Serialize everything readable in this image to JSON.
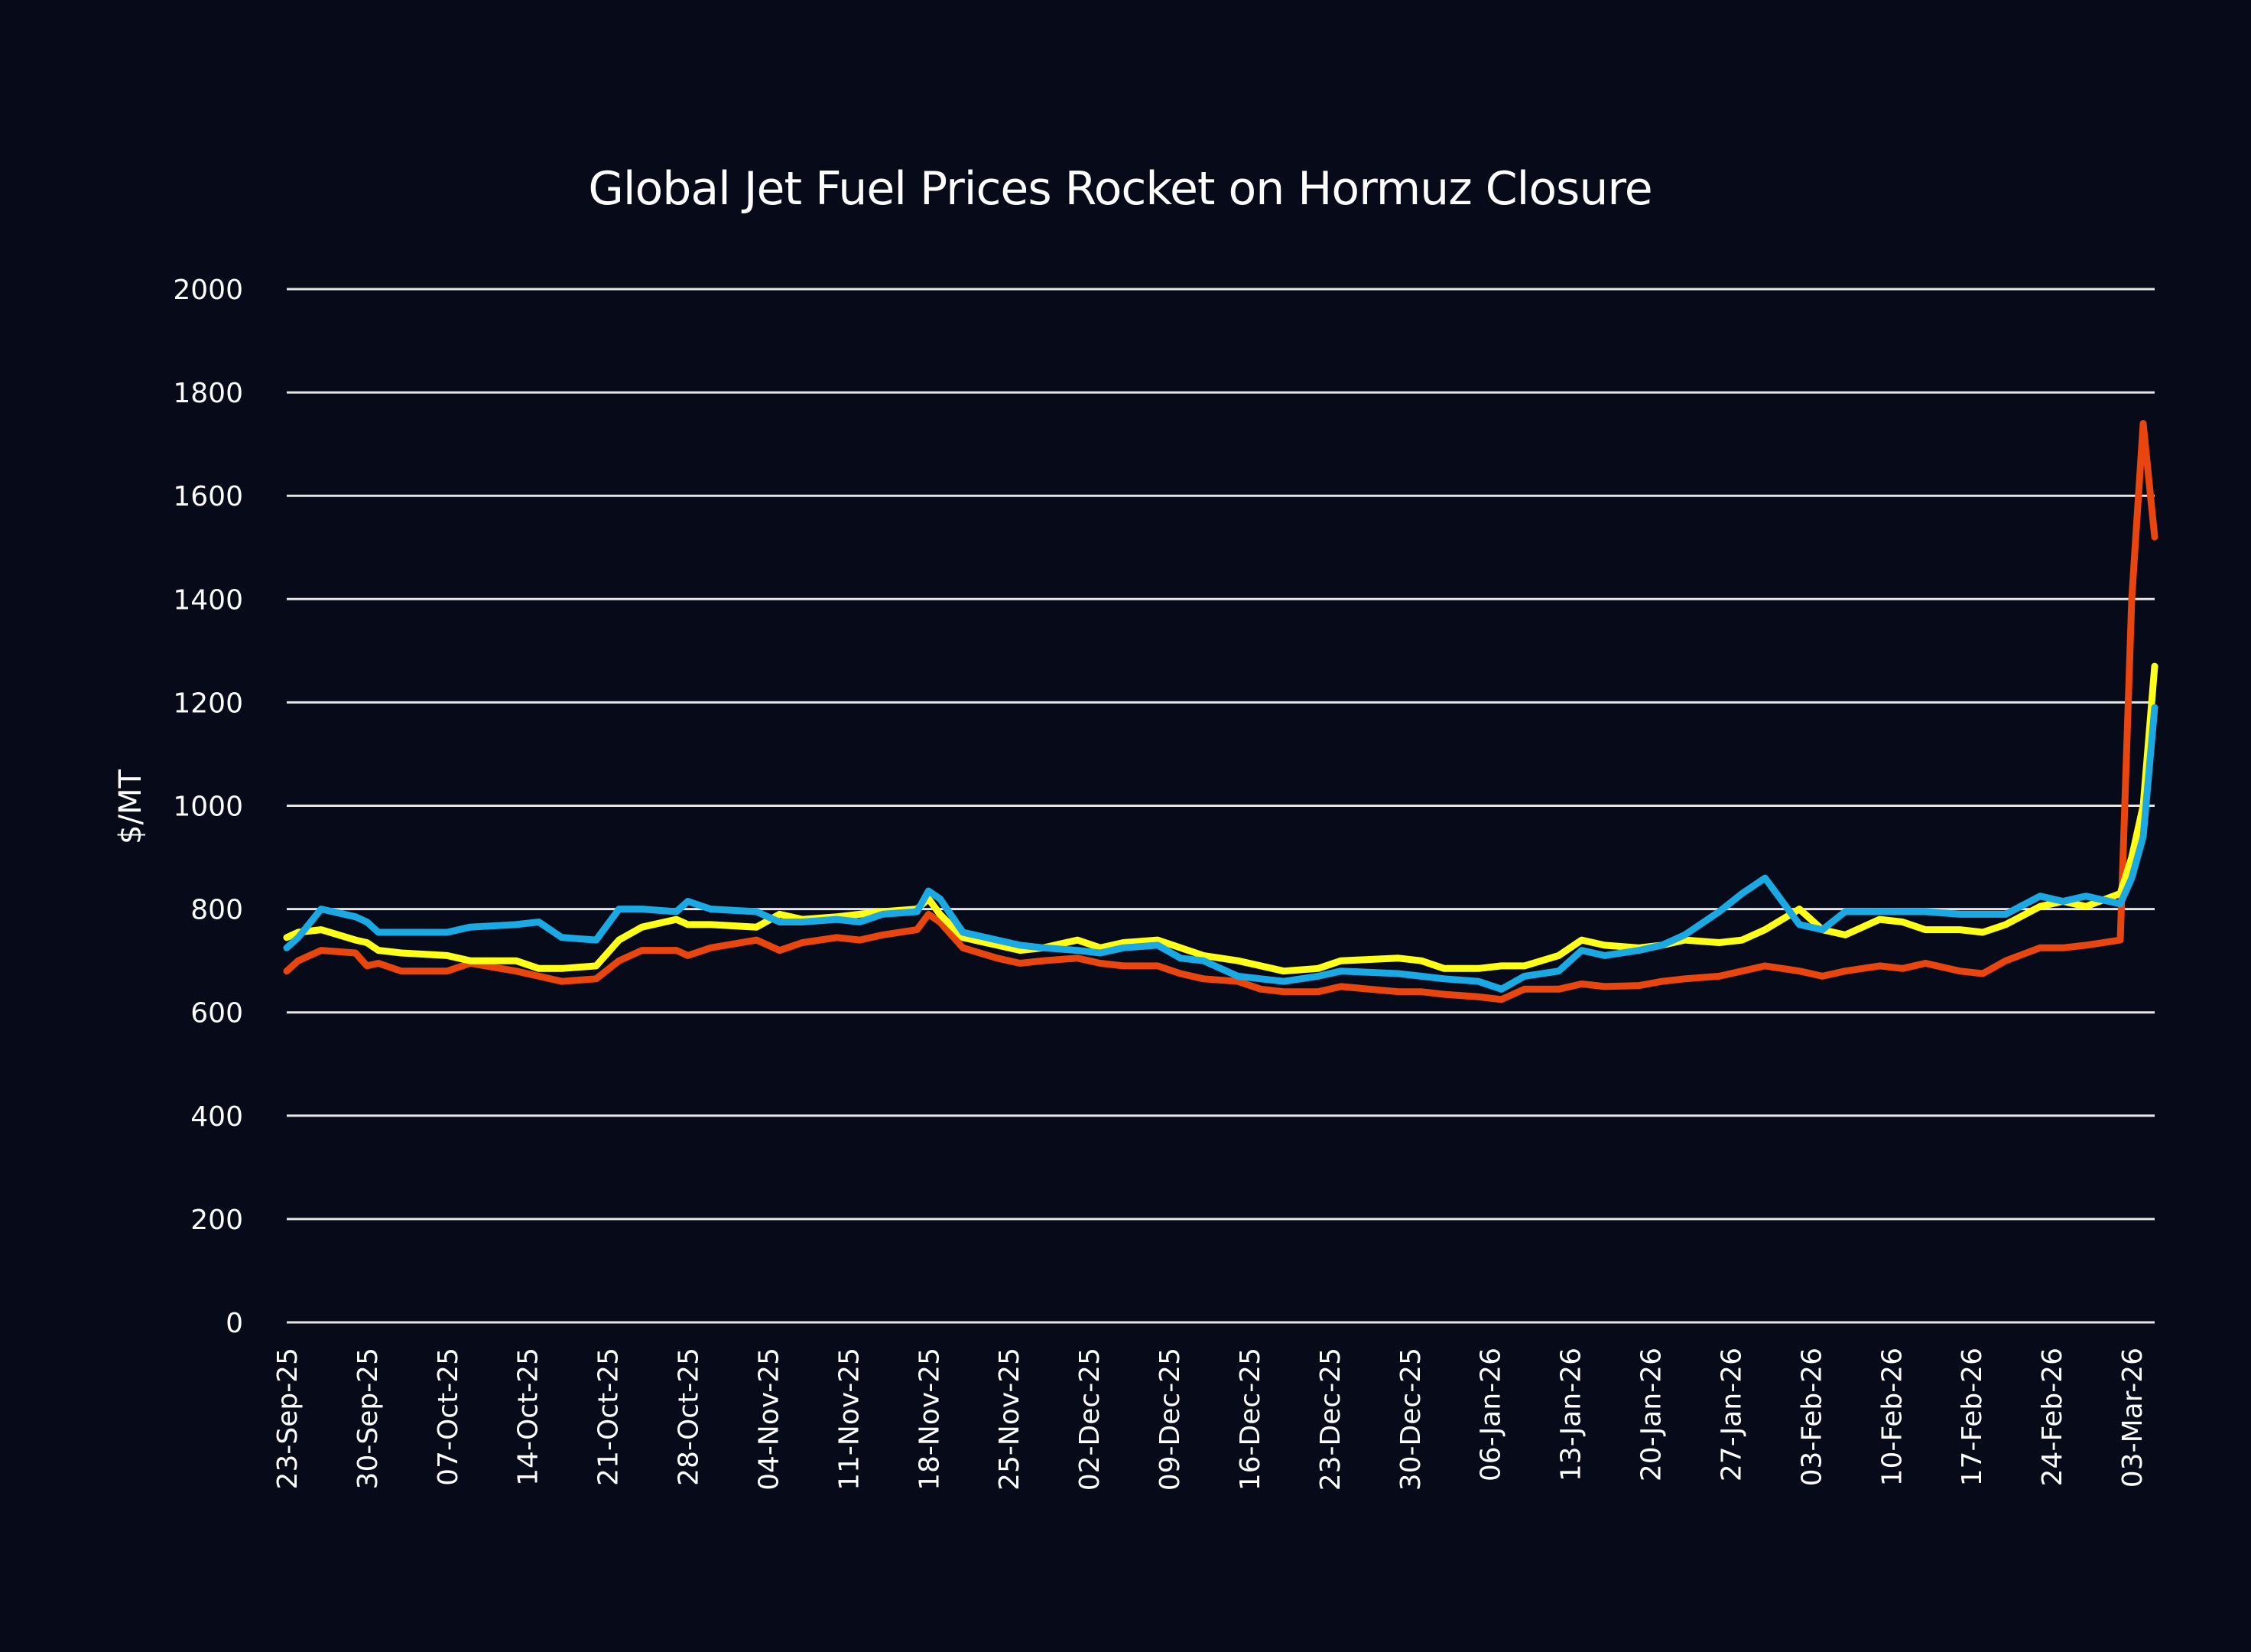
{
  "chart_data": {
    "type": "line",
    "title": "Global Jet Fuel Prices Rocket on Hormuz Closure",
    "xlabel": "",
    "ylabel": "$/MT",
    "ylim": [
      0,
      2000
    ],
    "yticks": [
      "0",
      "200",
      "400",
      "600",
      "800",
      "1000",
      "1200",
      "1400",
      "1600",
      "1800",
      "2000"
    ],
    "grid": true,
    "legend": "none",
    "x_start": "23-Sep-25",
    "x_end": "05-Mar-26",
    "xtick_labels": [
      "23-Sep-25",
      "30-Sep-25",
      "07-Oct-25",
      "14-Oct-25",
      "21-Oct-25",
      "28-Oct-25",
      "04-Nov-25",
      "11-Nov-25",
      "18-Nov-25",
      "25-Nov-25",
      "02-Dec-25",
      "09-Dec-25",
      "16-Dec-25",
      "23-Dec-25",
      "30-Dec-25",
      "06-Jan-26",
      "13-Jan-26",
      "20-Jan-26",
      "27-Jan-26",
      "03-Feb-26",
      "10-Feb-26",
      "17-Feb-26",
      "24-Feb-26",
      "03-Mar-26"
    ],
    "colors": {
      "background": "#070a18",
      "grid": "#e6e6e6",
      "text": "#ffffff"
    },
    "series": [
      {
        "color": "#e8460e",
        "x": [
          "23-Sep-25",
          "24-Sep-25",
          "26-Sep-25",
          "29-Sep-25",
          "30-Sep-25",
          "01-Oct-25",
          "03-Oct-25",
          "07-Oct-25",
          "09-Oct-25",
          "13-Oct-25",
          "15-Oct-25",
          "17-Oct-25",
          "20-Oct-25",
          "22-Oct-25",
          "24-Oct-25",
          "27-Oct-25",
          "28-Oct-25",
          "30-Oct-25",
          "03-Nov-25",
          "05-Nov-25",
          "07-Nov-25",
          "10-Nov-25",
          "12-Nov-25",
          "14-Nov-25",
          "17-Nov-25",
          "18-Nov-25",
          "19-Nov-25",
          "21-Nov-25",
          "24-Nov-25",
          "26-Nov-25",
          "28-Nov-25",
          "01-Dec-25",
          "03-Dec-25",
          "05-Dec-25",
          "08-Dec-25",
          "10-Dec-25",
          "12-Dec-25",
          "15-Dec-25",
          "17-Dec-25",
          "19-Dec-25",
          "22-Dec-25",
          "24-Dec-25",
          "29-Dec-25",
          "31-Dec-25",
          "02-Jan-26",
          "05-Jan-26",
          "07-Jan-26",
          "09-Jan-26",
          "12-Jan-26",
          "14-Jan-26",
          "16-Jan-26",
          "19-Jan-26",
          "21-Jan-26",
          "23-Jan-26",
          "26-Jan-26",
          "28-Jan-26",
          "30-Jan-26",
          "02-Feb-26",
          "04-Feb-26",
          "06-Feb-26",
          "09-Feb-26",
          "11-Feb-26",
          "13-Feb-26",
          "16-Feb-26",
          "18-Feb-26",
          "20-Feb-26",
          "23-Feb-26",
          "25-Feb-26",
          "27-Feb-26",
          "02-Mar-26",
          "03-Mar-26",
          "04-Mar-26",
          "05-Mar-26"
        ],
        "values": [
          680,
          700,
          720,
          715,
          690,
          695,
          680,
          680,
          695,
          680,
          670,
          660,
          665,
          700,
          720,
          720,
          710,
          725,
          740,
          720,
          735,
          745,
          740,
          750,
          760,
          790,
          775,
          725,
          705,
          695,
          700,
          705,
          695,
          690,
          690,
          675,
          665,
          660,
          645,
          640,
          640,
          650,
          640,
          640,
          635,
          630,
          625,
          645,
          645,
          655,
          650,
          652,
          660,
          665,
          670,
          680,
          690,
          680,
          670,
          680,
          690,
          685,
          695,
          680,
          675,
          700,
          725,
          725,
          730,
          740,
          1400,
          1740,
          1520
        ]
      },
      {
        "color": "#ffff1a",
        "x": [
          "23-Sep-25",
          "24-Sep-25",
          "26-Sep-25",
          "29-Sep-25",
          "30-Sep-25",
          "01-Oct-25",
          "03-Oct-25",
          "07-Oct-25",
          "09-Oct-25",
          "13-Oct-25",
          "15-Oct-25",
          "17-Oct-25",
          "20-Oct-25",
          "22-Oct-25",
          "24-Oct-25",
          "27-Oct-25",
          "28-Oct-25",
          "30-Oct-25",
          "03-Nov-25",
          "05-Nov-25",
          "07-Nov-25",
          "10-Nov-25",
          "12-Nov-25",
          "14-Nov-25",
          "17-Nov-25",
          "18-Nov-25",
          "19-Nov-25",
          "21-Nov-25",
          "24-Nov-25",
          "26-Nov-25",
          "28-Nov-25",
          "01-Dec-25",
          "03-Dec-25",
          "05-Dec-25",
          "08-Dec-25",
          "10-Dec-25",
          "12-Dec-25",
          "15-Dec-25",
          "17-Dec-25",
          "19-Dec-25",
          "22-Dec-25",
          "24-Dec-25",
          "29-Dec-25",
          "31-Dec-25",
          "02-Jan-26",
          "05-Jan-26",
          "07-Jan-26",
          "09-Jan-26",
          "12-Jan-26",
          "14-Jan-26",
          "16-Jan-26",
          "19-Jan-26",
          "21-Jan-26",
          "23-Jan-26",
          "26-Jan-26",
          "28-Jan-26",
          "30-Jan-26",
          "02-Feb-26",
          "04-Feb-26",
          "06-Feb-26",
          "09-Feb-26",
          "11-Feb-26",
          "13-Feb-26",
          "16-Feb-26",
          "18-Feb-26",
          "20-Feb-26",
          "23-Feb-26",
          "25-Feb-26",
          "27-Feb-26",
          "02-Mar-26",
          "03-Mar-26",
          "04-Mar-26",
          "05-Mar-26"
        ],
        "values": [
          745,
          755,
          760,
          740,
          735,
          720,
          715,
          710,
          700,
          700,
          685,
          685,
          690,
          740,
          765,
          780,
          770,
          770,
          765,
          790,
          780,
          785,
          790,
          795,
          800,
          820,
          790,
          745,
          730,
          720,
          725,
          740,
          725,
          735,
          740,
          725,
          710,
          700,
          690,
          680,
          685,
          700,
          705,
          700,
          685,
          685,
          690,
          690,
          710,
          740,
          730,
          725,
          730,
          740,
          735,
          740,
          760,
          800,
          760,
          750,
          780,
          775,
          760,
          760,
          755,
          770,
          805,
          815,
          805,
          830,
          900,
          1000,
          1270
        ]
      },
      {
        "color": "#1ba9e3",
        "x": [
          "23-Sep-25",
          "24-Sep-25",
          "26-Sep-25",
          "29-Sep-25",
          "30-Sep-25",
          "01-Oct-25",
          "03-Oct-25",
          "07-Oct-25",
          "09-Oct-25",
          "13-Oct-25",
          "15-Oct-25",
          "17-Oct-25",
          "20-Oct-25",
          "22-Oct-25",
          "24-Oct-25",
          "27-Oct-25",
          "28-Oct-25",
          "30-Oct-25",
          "03-Nov-25",
          "05-Nov-25",
          "07-Nov-25",
          "10-Nov-25",
          "12-Nov-25",
          "14-Nov-25",
          "17-Nov-25",
          "18-Nov-25",
          "19-Nov-25",
          "21-Nov-25",
          "24-Nov-25",
          "26-Nov-25",
          "28-Nov-25",
          "01-Dec-25",
          "03-Dec-25",
          "05-Dec-25",
          "08-Dec-25",
          "10-Dec-25",
          "12-Dec-25",
          "15-Dec-25",
          "17-Dec-25",
          "19-Dec-25",
          "22-Dec-25",
          "24-Dec-25",
          "29-Dec-25",
          "31-Dec-25",
          "02-Jan-26",
          "05-Jan-26",
          "07-Jan-26",
          "09-Jan-26",
          "12-Jan-26",
          "14-Jan-26",
          "16-Jan-26",
          "19-Jan-26",
          "21-Jan-26",
          "23-Jan-26",
          "26-Jan-26",
          "28-Jan-26",
          "30-Jan-26",
          "02-Feb-26",
          "04-Feb-26",
          "06-Feb-26",
          "09-Feb-26",
          "11-Feb-26",
          "13-Feb-26",
          "16-Feb-26",
          "18-Feb-26",
          "20-Feb-26",
          "23-Feb-26",
          "25-Feb-26",
          "27-Feb-26",
          "02-Mar-26",
          "03-Mar-26",
          "04-Mar-26",
          "05-Mar-26"
        ],
        "values": [
          725,
          745,
          800,
          785,
          775,
          755,
          755,
          755,
          765,
          770,
          775,
          745,
          740,
          800,
          800,
          795,
          815,
          800,
          795,
          775,
          775,
          780,
          775,
          790,
          795,
          835,
          820,
          755,
          740,
          730,
          725,
          720,
          715,
          725,
          730,
          705,
          700,
          670,
          665,
          660,
          670,
          680,
          675,
          670,
          665,
          660,
          645,
          670,
          680,
          720,
          710,
          720,
          730,
          750,
          795,
          830,
          860,
          770,
          760,
          795,
          795,
          795,
          795,
          790,
          790,
          790,
          825,
          815,
          825,
          810,
          860,
          940,
          1190
        ]
      }
    ]
  }
}
